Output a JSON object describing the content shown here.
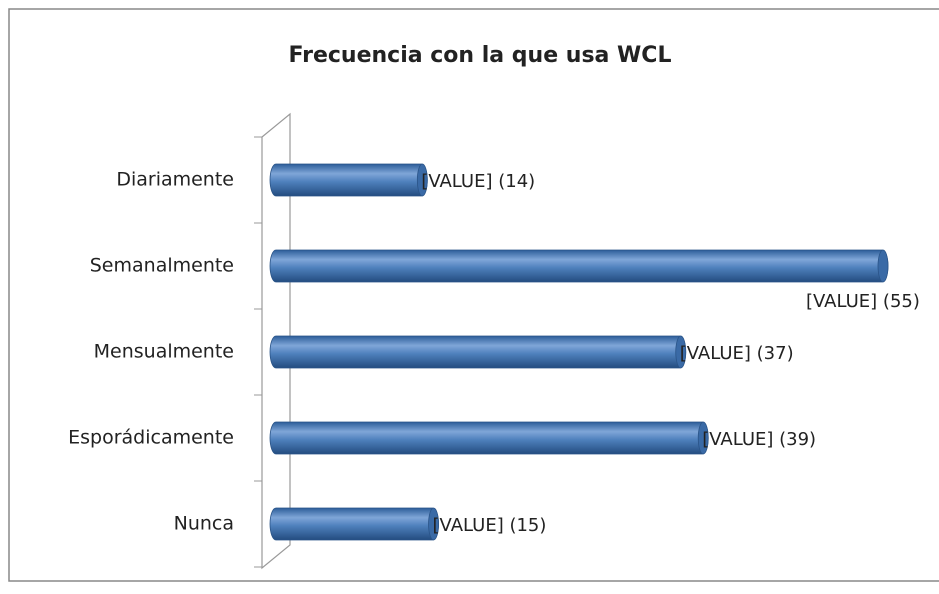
{
  "chart_data": {
    "type": "bar",
    "orientation": "horizontal",
    "title": "Frecuencia con la que usa WCL",
    "categories": [
      "Diariamente",
      "Semanalmente",
      "Mensualmente",
      "Esporádicamente",
      "Nunca"
    ],
    "values": [
      14,
      55,
      37,
      39,
      15
    ],
    "value_labels": [
      "[VALUE] (14)",
      "[VALUE] (55)",
      "[VALUE] (37)",
      "[VALUE] (39)",
      "[VALUE] (15)"
    ],
    "color": "#4f81bd"
  }
}
